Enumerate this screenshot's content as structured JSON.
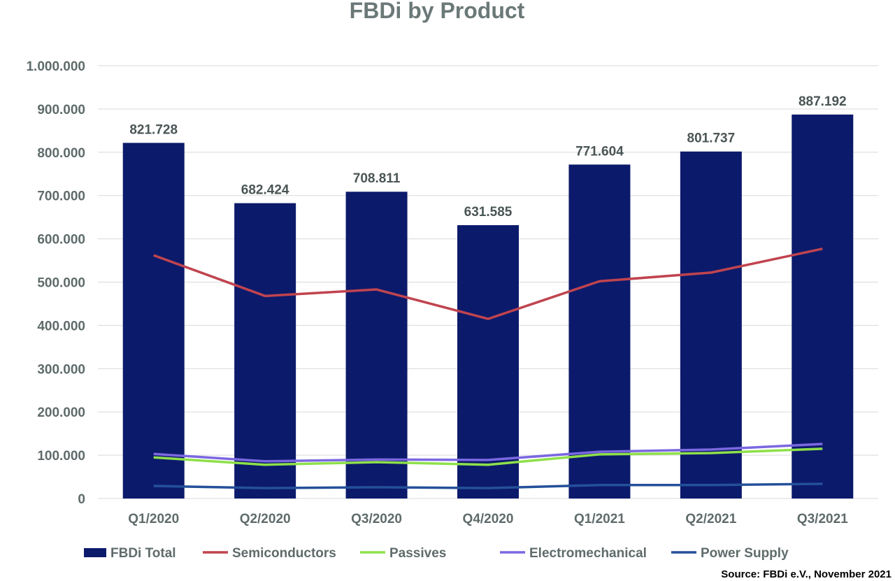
{
  "chart_data": {
    "type": "bar",
    "title": "FBDi by Product",
    "source": "Source: FBDi e.V., November 2021",
    "categories": [
      "Q1/2020",
      "Q2/2020",
      "Q3/2020",
      "Q4/2020",
      "Q1/2021",
      "Q2/2021",
      "Q3/2021"
    ],
    "ylim": [
      0,
      1000000
    ],
    "yticks": [
      0,
      100000,
      200000,
      300000,
      400000,
      500000,
      600000,
      700000,
      800000,
      900000,
      1000000
    ],
    "ytick_labels": [
      "0",
      "100.000",
      "200.000",
      "300.000",
      "400.000",
      "500.000",
      "600.000",
      "700.000",
      "800.000",
      "900.000",
      "1.000.000"
    ],
    "grid": true,
    "legend_position": "bottom",
    "series": [
      {
        "name": "FBDi Total",
        "type": "bar",
        "color": "#0c1a6b",
        "values": [
          821728,
          682424,
          708811,
          631585,
          771604,
          801737,
          887192
        ],
        "labels": [
          "821.728",
          "682.424",
          "708.811",
          "631.585",
          "771.604",
          "801.737",
          "887.192"
        ]
      },
      {
        "name": "Semiconductors",
        "type": "line",
        "color": "#c0444f",
        "values": [
          562000,
          468000,
          483000,
          415000,
          502000,
          522000,
          577000
        ]
      },
      {
        "name": "Passives",
        "type": "line",
        "color": "#8ee04a",
        "values": [
          95000,
          78000,
          84000,
          78000,
          102000,
          105000,
          115000
        ]
      },
      {
        "name": "Electromechanical",
        "type": "line",
        "color": "#7b68e0",
        "values": [
          103000,
          86000,
          90000,
          89000,
          108000,
          113000,
          126000
        ]
      },
      {
        "name": "Power Supply",
        "type": "line",
        "color": "#24509a",
        "values": [
          29000,
          24000,
          26000,
          24000,
          31000,
          31000,
          34000
        ]
      }
    ]
  }
}
